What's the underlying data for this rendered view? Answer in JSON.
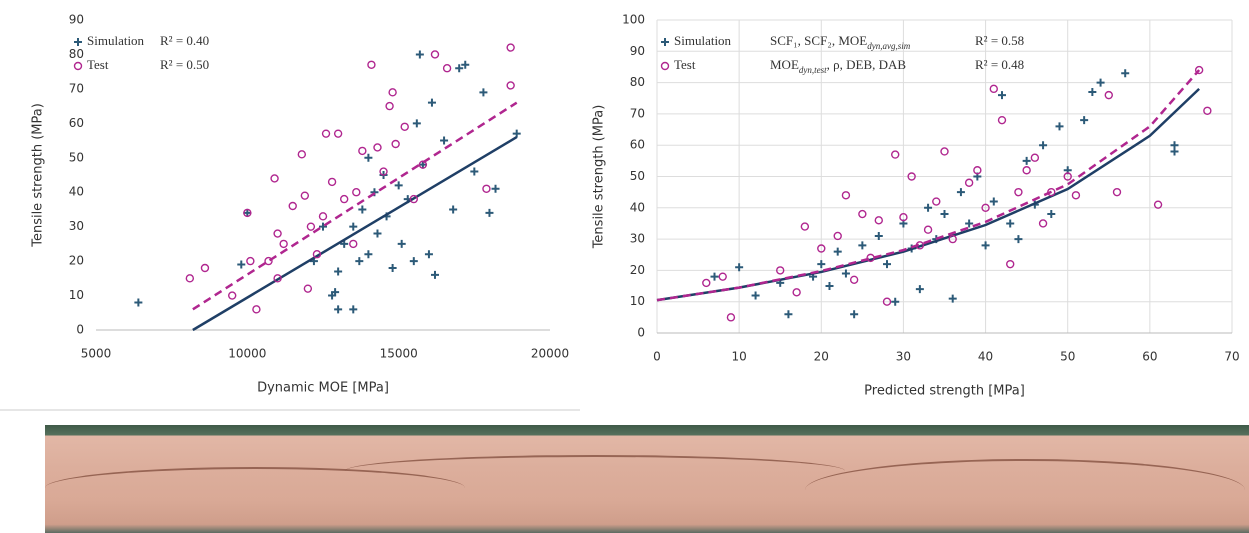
{
  "chart_data": [
    {
      "type": "scatter",
      "xlabel": "Dynamic MOE [MPa]",
      "ylabel": "Tensile strength (MPa)",
      "xlim": [
        5000,
        20000
      ],
      "xticks": [
        5000,
        10000,
        15000,
        20000
      ],
      "ylim": [
        0,
        90
      ],
      "yticks": [
        0,
        10,
        20,
        30,
        40,
        50,
        60,
        70,
        80,
        90
      ],
      "grid": false,
      "legend": "upper left",
      "series": [
        {
          "name": "Simulation",
          "r2": "R² = 0.40",
          "color": "#2c5a78",
          "marker": "plus",
          "x": [
            6400,
            9800,
            10000,
            12200,
            12800,
            12900,
            13000,
            13500,
            13200,
            13500,
            13700,
            13800,
            14000,
            14200,
            14300,
            14500,
            14600,
            14800,
            15000,
            15100,
            15300,
            15500,
            15700,
            15800,
            16000,
            16100,
            16200,
            16500,
            16800,
            17000,
            17200,
            17500,
            17800,
            18000,
            18200,
            18900,
            15600,
            14000,
            13000,
            12500
          ],
          "y": [
            8,
            19,
            34,
            20,
            10,
            11,
            6,
            6,
            25,
            30,
            20,
            35,
            22,
            40,
            28,
            45,
            33,
            18,
            42,
            25,
            38,
            20,
            80,
            48,
            22,
            66,
            16,
            55,
            35,
            76,
            77,
            46,
            69,
            34,
            41,
            57,
            60,
            50,
            17,
            30
          ],
          "trend": {
            "style": "solid",
            "color": "#1f3f66",
            "x": [
              8200,
              18900
            ],
            "y": [
              0,
              56
            ]
          }
        },
        {
          "name": "Test",
          "r2": "R² = 0.50",
          "color": "#b0268f",
          "marker": "circle",
          "x": [
            8100,
            8600,
            9500,
            10000,
            10100,
            10300,
            10700,
            10900,
            11000,
            11200,
            11500,
            11800,
            11900,
            12100,
            12300,
            12500,
            12600,
            12800,
            13000,
            13200,
            13500,
            13800,
            14100,
            14300,
            14500,
            14700,
            14800,
            14900,
            15200,
            15500,
            15800,
            16200,
            16600,
            17900,
            18700,
            18700,
            11000,
            12000,
            13600
          ],
          "y": [
            15,
            18,
            10,
            34,
            20,
            6,
            20,
            44,
            28,
            25,
            36,
            51,
            39,
            30,
            22,
            33,
            57,
            43,
            57,
            38,
            25,
            52,
            77,
            53,
            46,
            65,
            69,
            54,
            59,
            38,
            48,
            80,
            76,
            41,
            82,
            71,
            15,
            12,
            40
          ],
          "trend": {
            "style": "dashed",
            "color": "#b0268f",
            "x": [
              8200,
              18900
            ],
            "y": [
              6,
              66
            ]
          }
        }
      ]
    },
    {
      "type": "scatter",
      "xlabel": "Predicted strength [MPa]",
      "ylabel": "Tensile strength (MPa)",
      "xlim": [
        0,
        70
      ],
      "xticks": [
        0,
        10,
        20,
        30,
        40,
        50,
        60,
        70
      ],
      "ylim": [
        0,
        100
      ],
      "yticks": [
        0,
        10,
        20,
        30,
        40,
        50,
        60,
        70,
        80,
        90,
        100
      ],
      "grid": true,
      "legend": "upper left",
      "series": [
        {
          "name": "Simulation",
          "model": [
            "SCF₁, SCF₂, MOE",
            "dyn,avg,sim"
          ],
          "r2": "R² = 0.58",
          "color": "#2c5a78",
          "marker": "plus",
          "x": [
            7,
            10,
            12,
            15,
            16,
            19,
            20,
            21,
            22,
            23,
            24,
            25,
            27,
            28,
            29,
            30,
            31,
            32,
            33,
            34,
            35,
            36,
            37,
            38,
            39,
            40,
            41,
            42,
            43,
            44,
            45,
            46,
            47,
            48,
            49,
            50,
            52,
            53,
            54,
            57,
            63,
            63
          ],
          "y": [
            18,
            21,
            12,
            16,
            6,
            18,
            22,
            15,
            26,
            19,
            6,
            28,
            31,
            22,
            10,
            35,
            27,
            14,
            40,
            30,
            38,
            11,
            45,
            35,
            50,
            28,
            42,
            76,
            35,
            30,
            55,
            41,
            60,
            38,
            66,
            52,
            68,
            77,
            80,
            83,
            58,
            60
          ],
          "trend": {
            "style": "solid",
            "color": "#1f3f66",
            "x": [
              0,
              10,
              20,
              30,
              40,
              50,
              60,
              66
            ],
            "y": [
              10.5,
              14.5,
              19.5,
              26,
              34.5,
              46,
              63,
              78
            ]
          }
        },
        {
          "name": "Test",
          "model": [
            "MOE",
            "dyn,test",
            ", ρ, DEB, DAB"
          ],
          "r2": "R² = 0.48",
          "color": "#b0268f",
          "marker": "circle",
          "x": [
            6,
            8,
            9,
            15,
            17,
            18,
            20,
            22,
            23,
            24,
            25,
            26,
            27,
            28,
            29,
            30,
            31,
            32,
            33,
            34,
            35,
            36,
            38,
            39,
            40,
            41,
            42,
            43,
            44,
            45,
            46,
            47,
            48,
            50,
            51,
            55,
            56,
            61,
            66,
            67
          ],
          "y": [
            16,
            18,
            5,
            20,
            13,
            34,
            27,
            31,
            44,
            17,
            38,
            24,
            36,
            10,
            57,
            37,
            50,
            28,
            33,
            42,
            58,
            30,
            48,
            52,
            40,
            78,
            68,
            22,
            45,
            52,
            56,
            35,
            45,
            50,
            44,
            76,
            45,
            41,
            84,
            71
          ],
          "trend": {
            "style": "dashed",
            "color": "#b0268f",
            "x": [
              0,
              10,
              20,
              30,
              40,
              50,
              60,
              66
            ],
            "y": [
              10.5,
              14.5,
              19.8,
              26.5,
              35.5,
              47.5,
              66,
              84
            ]
          }
        }
      ]
    }
  ]
}
